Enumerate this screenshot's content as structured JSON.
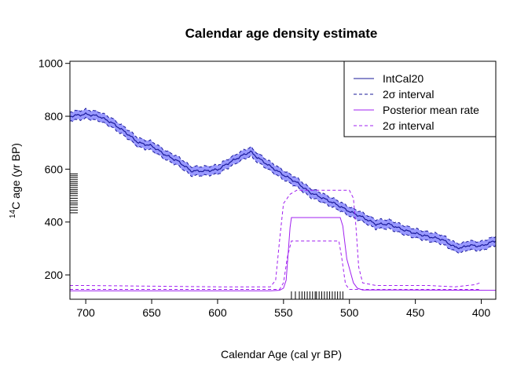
{
  "chart_data": {
    "type": "line",
    "title": "Calendar age density estimate",
    "xlabel": "Calendar Age (cal yr BP)",
    "ylabel_sup": "14",
    "ylabel": "C age (yr BP)",
    "xlim": [
      712,
      389
    ],
    "ylim": [
      108,
      1008
    ],
    "x_ticks": [
      700,
      650,
      600,
      550,
      500,
      450,
      400
    ],
    "y_ticks": [
      200,
      400,
      600,
      800,
      1000
    ],
    "legend_position": "top-right",
    "colors": {
      "intcal_line": "#1a1a9a",
      "intcal_band": "#9999ff",
      "intcal_interval": "#1a1a9a",
      "posterior": "#a020f0"
    },
    "legend": [
      {
        "label": "IntCal20",
        "style": "solid",
        "color": "#1a1a9a"
      },
      {
        "label": "2σ interval",
        "style": "dashed",
        "color": "#1a1a9a"
      },
      {
        "label": "Posterior mean rate",
        "style": "solid",
        "color": "#a020f0"
      },
      {
        "label": "2σ interval",
        "style": "dashed",
        "color": "#a020f0"
      }
    ],
    "intcal_curve": {
      "x": [
        712,
        700,
        690,
        680,
        670,
        660,
        650,
        640,
        630,
        620,
        610,
        600,
        590,
        580,
        575,
        570,
        560,
        550,
        540,
        530,
        520,
        510,
        500,
        490,
        480,
        470,
        460,
        450,
        440,
        430,
        420,
        415,
        410,
        400,
        389
      ],
      "y": [
        800,
        808,
        800,
        775,
        740,
        700,
        688,
        655,
        630,
        593,
        593,
        598,
        628,
        655,
        666,
        645,
        610,
        578,
        550,
        512,
        490,
        467,
        440,
        418,
        392,
        392,
        372,
        357,
        345,
        335,
        305,
        302,
        312,
        309,
        330
      ],
      "half_width": 17
    },
    "posterior_mean": {
      "x": [
        712,
        560,
        553,
        550,
        548,
        545,
        544,
        507,
        505,
        502,
        497,
        494,
        490,
        389
      ],
      "y": [
        140,
        140,
        142,
        150,
        180,
        380,
        417,
        417,
        385,
        260,
        170,
        150,
        143,
        142
      ]
    },
    "posterior_upper": {
      "x": [
        712,
        700,
        600,
        560,
        556,
        553,
        550,
        545,
        540,
        530,
        500,
        497,
        495,
        493,
        490,
        480,
        440,
        420,
        405,
        400
      ],
      "y": [
        160,
        160,
        155,
        155,
        180,
        330,
        470,
        505,
        520,
        520,
        520,
        490,
        380,
        230,
        170,
        160,
        160,
        155,
        163,
        172
      ]
    },
    "posterior_lower": {
      "x": [
        712,
        553,
        550,
        547,
        544,
        508,
        506,
        503,
        500,
        400
      ],
      "y": [
        145,
        145,
        170,
        270,
        328,
        328,
        270,
        165,
        145,
        145
      ]
    },
    "data_rug": {
      "x": [
        544,
        541,
        538,
        536,
        534,
        532,
        530,
        528,
        526,
        525,
        523,
        521,
        519,
        517,
        515,
        513,
        511,
        509,
        507,
        505
      ]
    },
    "c14_rug": {
      "y": [
        435,
        445,
        455,
        465,
        472,
        480,
        490,
        500,
        508,
        515,
        522,
        530,
        538,
        545,
        552,
        560,
        568,
        575,
        582
      ]
    }
  }
}
